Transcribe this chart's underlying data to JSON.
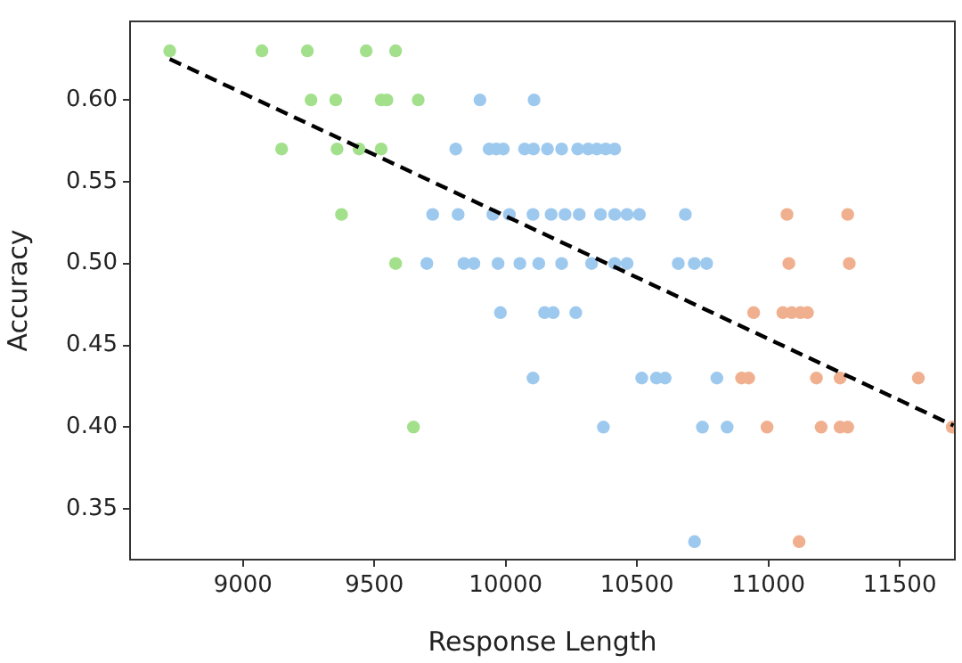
{
  "chart_data": {
    "type": "scatter",
    "xlabel": "Response Length",
    "ylabel": "Accuracy",
    "xlim": [
      8570,
      11710
    ],
    "ylim": [
      0.319,
      0.648
    ],
    "xticks": [
      9000,
      9500,
      10000,
      10500,
      11000,
      11500
    ],
    "yticks": [
      {
        "value": 0.35,
        "label": "0.35"
      },
      {
        "value": 0.4,
        "label": "0.40"
      },
      {
        "value": 0.45,
        "label": "0.45"
      },
      {
        "value": 0.5,
        "label": "0.50"
      },
      {
        "value": 0.55,
        "label": "0.55"
      },
      {
        "value": 0.6,
        "label": "0.60"
      }
    ],
    "grid": false,
    "legend": false,
    "marker": "circle",
    "series": [
      {
        "color": "#a3e08c",
        "x": [
          8721,
          9072,
          9245,
          9469,
          9581,
          9259,
          9353,
          9526,
          9548,
          9667,
          9147,
          9358,
          9442,
          9526,
          9375,
          9581,
          9649
        ],
        "values": [
          0.63,
          0.63,
          0.63,
          0.63,
          0.63,
          0.6,
          0.6,
          0.6,
          0.6,
          0.6,
          0.57,
          0.57,
          0.57,
          0.57,
          0.53,
          0.5,
          0.4
        ]
      },
      {
        "color": "#9ec9ee",
        "x": [
          9902,
          10108,
          9810,
          9937,
          9964,
          9991,
          10072,
          10106,
          10159,
          10213,
          10274,
          10314,
          10347,
          10381,
          10415,
          9722,
          9819,
          9951,
          10014,
          10104,
          10173,
          10226,
          10280,
          10361,
          10415,
          10462,
          10509,
          10684,
          9700,
          9841,
          9879,
          9971,
          10054,
          10126,
          10213,
          10327,
          10415,
          10462,
          10657,
          10718,
          10765,
          9980,
          10148,
          10181,
          10267,
          10104,
          10518,
          10574,
          10607,
          10804,
          10372,
          10749,
          10843,
          10719
        ],
        "values": [
          0.6,
          0.6,
          0.57,
          0.57,
          0.57,
          0.57,
          0.57,
          0.57,
          0.57,
          0.57,
          0.57,
          0.57,
          0.57,
          0.57,
          0.57,
          0.53,
          0.53,
          0.53,
          0.53,
          0.53,
          0.53,
          0.53,
          0.53,
          0.53,
          0.53,
          0.53,
          0.53,
          0.53,
          0.5,
          0.5,
          0.5,
          0.5,
          0.5,
          0.5,
          0.5,
          0.5,
          0.5,
          0.5,
          0.5,
          0.5,
          0.5,
          0.47,
          0.47,
          0.47,
          0.47,
          0.43,
          0.43,
          0.43,
          0.43,
          0.43,
          0.4,
          0.4,
          0.4,
          0.33
        ]
      },
      {
        "color": "#f0b08f",
        "x": [
          11071,
          11302,
          11078,
          11308,
          10944,
          11055,
          11089,
          11122,
          11149,
          10898,
          10925,
          11183,
          11273,
          11571,
          10995,
          11201,
          11273,
          11302,
          11700,
          11117
        ],
        "values": [
          0.53,
          0.53,
          0.5,
          0.5,
          0.47,
          0.47,
          0.47,
          0.47,
          0.47,
          0.43,
          0.43,
          0.43,
          0.43,
          0.43,
          0.4,
          0.4,
          0.4,
          0.4,
          0.4,
          0.33
        ]
      },
      {
        "type": "line",
        "color": "#000000",
        "line_style": "dashed",
        "marker": "none",
        "x": [
          8721,
          11705
        ],
        "values": [
          0.625,
          0.401
        ]
      }
    ]
  }
}
